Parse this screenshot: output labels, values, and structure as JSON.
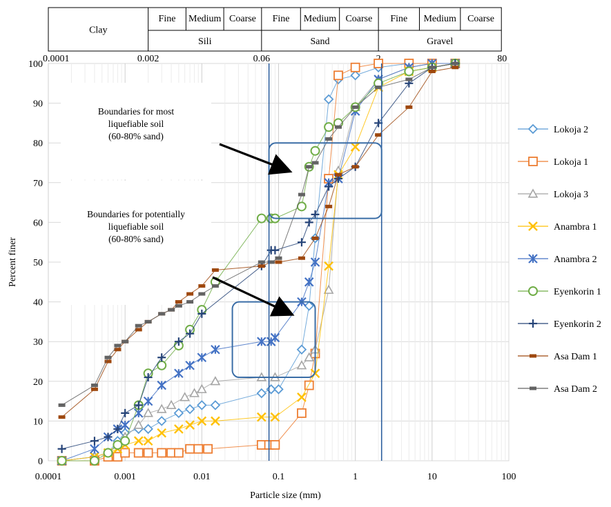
{
  "chart_data": {
    "type": "scatter",
    "x_scale": "log",
    "xlim": [
      0.0001,
      100
    ],
    "ylim": [
      0,
      100
    ],
    "grid": true,
    "legend_position": "right",
    "xlabel": "Particle size (mm)",
    "ylabel": "Percent finer",
    "x_ticks": [
      {
        "value": 0.0001,
        "label": "0.0001"
      },
      {
        "value": 0.001,
        "label": "0.001"
      },
      {
        "value": 0.01,
        "label": "0.01"
      },
      {
        "value": 0.1,
        "label": "0.1"
      },
      {
        "value": 1,
        "label": "1"
      },
      {
        "value": 10,
        "label": "10"
      },
      {
        "value": 100,
        "label": "100"
      }
    ],
    "y_ticks": [
      0,
      10,
      20,
      30,
      40,
      50,
      60,
      70,
      80,
      90,
      100
    ],
    "top_scale": [
      {
        "value": 0.0001,
        "label": "0.0001"
      },
      {
        "value": 0.002,
        "label": "0.002"
      },
      {
        "value": 0.06,
        "label": "0.06"
      },
      {
        "value": 2,
        "label": "2"
      },
      {
        "value": 80,
        "label": "80"
      }
    ],
    "classification": {
      "groups": [
        {
          "label": "Clay",
          "from": 0.0001,
          "to": 0.002,
          "subs": []
        },
        {
          "label": "Sili",
          "from": 0.002,
          "to": 0.06,
          "subs": [
            "Fine",
            "Medium",
            "Coarse"
          ]
        },
        {
          "label": "Sand",
          "from": 0.06,
          "to": 2,
          "subs": [
            "Fine",
            "Medium",
            "Coarse"
          ]
        },
        {
          "label": "Gravel",
          "from": 2,
          "to": 80,
          "subs": [
            "Fine",
            "Medium",
            "Coarse"
          ]
        }
      ]
    },
    "vertical_lines": [
      0.075,
      2.2
    ],
    "boxes": [
      {
        "x": [
          0.075,
          2.2
        ],
        "y": [
          61,
          80
        ]
      },
      {
        "x": [
          0.025,
          0.3
        ],
        "y": [
          21,
          40
        ]
      }
    ],
    "annotations": [
      {
        "text": [
          "Boundaries for most",
          "liquefiable soil",
          "(60-80% sand)"
        ],
        "arrow_to": {
          "x": 0.075,
          "y": 73
        }
      },
      {
        "text": [
          "Boundaries for potentially",
          "liquefiable soil",
          "(60-80% sand)"
        ],
        "arrow_to": {
          "x": 0.08,
          "y": 37
        }
      }
    ],
    "series": [
      {
        "name": "Lokoja 2",
        "color": "#5b9bd5",
        "marker": "diamond",
        "x": [
          0.00015,
          0.0004,
          0.0006,
          0.0008,
          0.001,
          0.0015,
          0.002,
          0.003,
          0.005,
          0.007,
          0.01,
          0.015,
          0.06,
          0.08,
          0.1,
          0.2,
          0.25,
          0.3,
          0.45,
          0.6,
          1,
          2,
          5,
          10,
          20
        ],
        "y": [
          0,
          1,
          2,
          5,
          7,
          8,
          8,
          10,
          12,
          13,
          14,
          14,
          17,
          18,
          18,
          28,
          39,
          56,
          91,
          96,
          97,
          99,
          100,
          100,
          100
        ]
      },
      {
        "name": "Lokoja 1",
        "color": "#ed7d31",
        "marker": "square",
        "x": [
          0.00015,
          0.0004,
          0.0006,
          0.0008,
          0.001,
          0.0015,
          0.002,
          0.003,
          0.004,
          0.005,
          0.007,
          0.009,
          0.012,
          0.06,
          0.075,
          0.09,
          0.2,
          0.25,
          0.3,
          0.45,
          0.6,
          1,
          2,
          5,
          10,
          20
        ],
        "y": [
          0,
          0,
          1,
          1,
          2,
          2,
          2,
          2,
          2,
          2,
          3,
          3,
          3,
          4,
          4,
          4,
          12,
          19,
          27,
          71,
          97,
          99,
          100,
          100,
          100,
          100
        ]
      },
      {
        "name": "Lokoja 3",
        "color": "#a5a5a5",
        "marker": "triangle",
        "x": [
          0.00015,
          0.0004,
          0.0006,
          0.0008,
          0.001,
          0.0015,
          0.002,
          0.003,
          0.004,
          0.006,
          0.008,
          0.01,
          0.015,
          0.06,
          0.09,
          0.2,
          0.25,
          0.3,
          0.45,
          0.6,
          1,
          2,
          5,
          10,
          20
        ],
        "y": [
          0,
          1,
          2,
          4,
          6,
          9,
          12,
          13,
          14,
          16,
          17,
          18,
          20,
          21,
          21,
          24,
          26,
          28,
          43,
          73,
          89,
          96,
          99,
          100,
          100
        ]
      },
      {
        "name": "Anambra 1",
        "color": "#ffc000",
        "marker": "x",
        "x": [
          0.00015,
          0.0004,
          0.0006,
          0.0008,
          0.001,
          0.0015,
          0.002,
          0.003,
          0.005,
          0.007,
          0.01,
          0.015,
          0.06,
          0.09,
          0.2,
          0.3,
          0.45,
          0.6,
          1,
          2,
          5,
          10,
          20
        ],
        "y": [
          0,
          1,
          2,
          3,
          4,
          5,
          5,
          7,
          8,
          9,
          10,
          10,
          11,
          11,
          16,
          22,
          49,
          72,
          79,
          94,
          98,
          99,
          100
        ]
      },
      {
        "name": "Anambra 2",
        "color": "#4472c4",
        "marker": "asterisk",
        "x": [
          0.00015,
          0.0004,
          0.0006,
          0.0008,
          0.001,
          0.0015,
          0.002,
          0.003,
          0.005,
          0.007,
          0.01,
          0.015,
          0.06,
          0.08,
          0.09,
          0.2,
          0.25,
          0.3,
          0.45,
          0.6,
          1,
          2,
          5,
          10,
          20
        ],
        "y": [
          0,
          3,
          6,
          8,
          9,
          12,
          15,
          19,
          22,
          24,
          26,
          28,
          30,
          30,
          31,
          40,
          45,
          50,
          70,
          71,
          88,
          96,
          99,
          100,
          100
        ]
      },
      {
        "name": "Eyenkorin 1",
        "color": "#70ad47",
        "marker": "circle",
        "x": [
          0.00015,
          0.0004,
          0.0006,
          0.0008,
          0.001,
          0.0015,
          0.002,
          0.003,
          0.005,
          0.007,
          0.01,
          0.015,
          0.06,
          0.08,
          0.09,
          0.2,
          0.25,
          0.3,
          0.45,
          0.6,
          1,
          2,
          5,
          10,
          20
        ],
        "y": [
          0,
          0,
          2,
          4,
          5,
          14,
          22,
          24,
          29,
          33,
          38,
          45,
          61,
          61,
          61,
          64,
          74,
          78,
          84,
          85,
          89,
          95,
          98,
          99,
          100
        ]
      },
      {
        "name": "Eyenkorin 2",
        "color": "#264478",
        "marker": "plus",
        "x": [
          0.00015,
          0.0004,
          0.0006,
          0.0008,
          0.001,
          0.0015,
          0.002,
          0.003,
          0.005,
          0.007,
          0.01,
          0.06,
          0.08,
          0.09,
          0.2,
          0.25,
          0.3,
          0.45,
          0.6,
          1,
          2,
          5,
          10,
          20
        ],
        "y": [
          3,
          5,
          6,
          8,
          12,
          14,
          21,
          26,
          30,
          32,
          37,
          49,
          53,
          53,
          55,
          60,
          62,
          69,
          71,
          74,
          85,
          95,
          99,
          100
        ]
      },
      {
        "name": "Asa Dam 1",
        "color": "#9e480e",
        "marker": "dash",
        "x": [
          0.00015,
          0.0004,
          0.0006,
          0.0008,
          0.001,
          0.0015,
          0.002,
          0.003,
          0.004,
          0.005,
          0.007,
          0.01,
          0.015,
          0.06,
          0.08,
          0.1,
          0.2,
          0.3,
          0.45,
          0.6,
          1,
          2,
          5,
          10,
          20
        ],
        "y": [
          11,
          18,
          25,
          28,
          30,
          33,
          35,
          37,
          38,
          40,
          42,
          44,
          48,
          49,
          50,
          50,
          51,
          56,
          64,
          72,
          74,
          82,
          89,
          98,
          99
        ]
      },
      {
        "name": "Asa Dam 2",
        "color": "#636363",
        "marker": "dash",
        "x": [
          0.00015,
          0.0004,
          0.0006,
          0.0008,
          0.001,
          0.0015,
          0.002,
          0.003,
          0.004,
          0.005,
          0.007,
          0.01,
          0.015,
          0.06,
          0.08,
          0.1,
          0.2,
          0.25,
          0.3,
          0.45,
          0.6,
          1,
          2,
          5,
          10,
          20
        ],
        "y": [
          14,
          19,
          26,
          29,
          30,
          34,
          35,
          37,
          38,
          39,
          40,
          42,
          44,
          50,
          50,
          51,
          67,
          74,
          75,
          81,
          84,
          89,
          94,
          96,
          99,
          100
        ]
      }
    ]
  }
}
